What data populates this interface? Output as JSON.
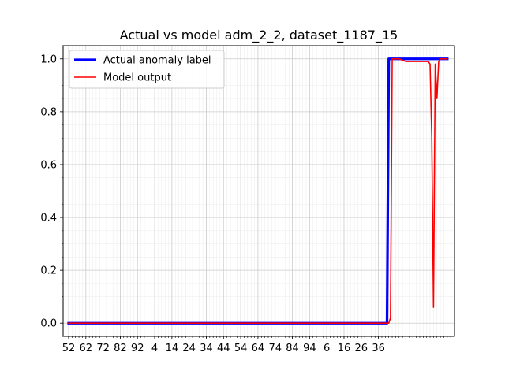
{
  "chart_data": {
    "type": "line",
    "title": "Actual vs model adm_2_2, dataset_1187_15",
    "xlabel": "",
    "ylabel": "",
    "x_tick_labels": [
      "52",
      "62",
      "72",
      "82",
      "92",
      "4",
      "14",
      "24",
      "34",
      "44",
      "54",
      "64",
      "74",
      "84",
      "94",
      "6",
      "16",
      "26",
      "36"
    ],
    "y_ticks": [
      0.0,
      0.2,
      0.4,
      0.6,
      0.8,
      1.0
    ],
    "y_tick_labels": [
      "0.0",
      "0.2",
      "0.4",
      "0.6",
      "0.8",
      "1.0"
    ],
    "xlim": [
      -3.2,
      224.2
    ],
    "ylim": [
      -0.05,
      1.05
    ],
    "grid": true,
    "legend_position": "top-left",
    "series": [
      {
        "name": "Actual anomaly label",
        "color": "#0000ff",
        "points": [
          [
            0,
            0.0
          ],
          [
            185,
            0.0
          ],
          [
            186,
            1.0
          ],
          [
            220,
            1.0
          ]
        ]
      },
      {
        "name": "Model output",
        "color": "#ff0000",
        "points": [
          [
            0,
            0.0
          ],
          [
            186,
            0.0
          ],
          [
            187,
            0.02
          ],
          [
            188,
            1.0
          ],
          [
            192,
            1.0
          ],
          [
            196,
            0.99
          ],
          [
            204,
            0.99
          ],
          [
            208,
            0.99
          ],
          [
            209,
            0.99
          ],
          [
            210,
            0.98
          ],
          [
            211,
            0.7
          ],
          [
            212,
            0.06
          ],
          [
            213,
            0.98
          ],
          [
            214,
            0.85
          ],
          [
            215,
            0.99
          ],
          [
            216,
            1.0
          ],
          [
            220,
            1.0
          ]
        ]
      }
    ]
  }
}
